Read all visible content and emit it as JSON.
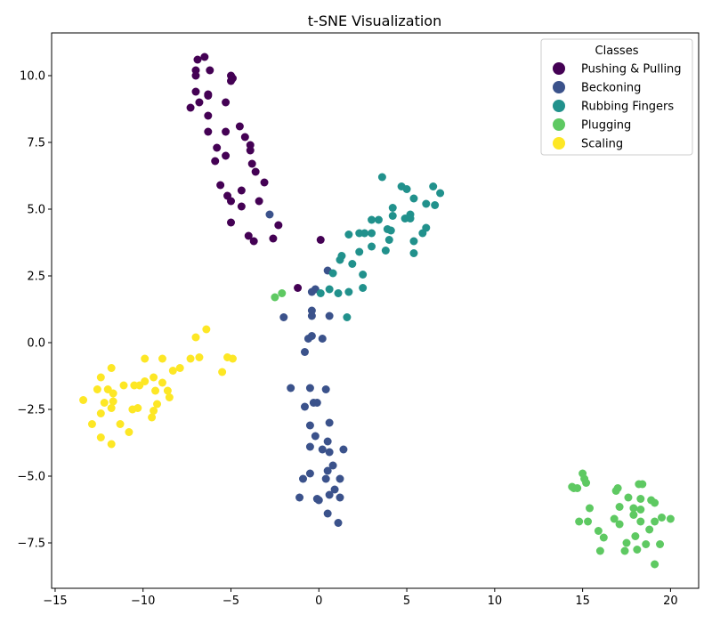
{
  "chart_data": {
    "type": "scatter",
    "title": "t-SNE Visualization",
    "xlabel": "",
    "ylabel": "",
    "xlim": [
      -15.2,
      21.6
    ],
    "ylim": [
      -9.2,
      11.6
    ],
    "xticks": [
      -15,
      -10,
      -5,
      0,
      5,
      10,
      15,
      20
    ],
    "yticks": [
      -7.5,
      -5.0,
      -2.5,
      0.0,
      2.5,
      5.0,
      7.5,
      10.0
    ],
    "grid": false,
    "legend": {
      "title": "Classes",
      "placement": "top-right"
    },
    "series": [
      {
        "name": "Pushing & Pulling",
        "color": "#440154",
        "points": [
          [
            -6.9,
            10.6
          ],
          [
            -6.5,
            10.7
          ],
          [
            -7.0,
            10.2
          ],
          [
            -6.2,
            10.2
          ],
          [
            -7.0,
            10.0
          ],
          [
            -5.0,
            10.0
          ],
          [
            -4.9,
            9.9
          ],
          [
            -5.0,
            9.8
          ],
          [
            -7.0,
            9.4
          ],
          [
            -6.3,
            9.3
          ],
          [
            -6.3,
            9.25
          ],
          [
            -6.8,
            9.0
          ],
          [
            -7.3,
            8.8
          ],
          [
            -5.3,
            9.0
          ],
          [
            -6.3,
            8.5
          ],
          [
            -4.5,
            8.1
          ],
          [
            -6.3,
            7.9
          ],
          [
            -5.3,
            7.9
          ],
          [
            -4.2,
            7.7
          ],
          [
            -3.9,
            7.4
          ],
          [
            -5.8,
            7.3
          ],
          [
            -3.9,
            7.2
          ],
          [
            -5.3,
            7.0
          ],
          [
            -5.9,
            6.8
          ],
          [
            -3.8,
            6.7
          ],
          [
            -3.6,
            6.4
          ],
          [
            -3.1,
            6.0
          ],
          [
            -5.6,
            5.9
          ],
          [
            -4.4,
            5.7
          ],
          [
            -5.2,
            5.5
          ],
          [
            -5.0,
            5.3
          ],
          [
            -3.4,
            5.3
          ],
          [
            -4.4,
            5.1
          ],
          [
            -2.3,
            4.4
          ],
          [
            -5.0,
            4.5
          ],
          [
            -4.0,
            4.0
          ],
          [
            -3.7,
            3.8
          ],
          [
            -2.6,
            3.9
          ],
          [
            0.1,
            3.85
          ],
          [
            -1.2,
            2.05
          ]
        ]
      },
      {
        "name": "Beckoning",
        "color": "#3b528b",
        "points": [
          [
            -2.8,
            4.8
          ],
          [
            0.5,
            2.7
          ],
          [
            -0.2,
            2.0
          ],
          [
            -0.4,
            1.9
          ],
          [
            -0.4,
            1.2
          ],
          [
            0.6,
            1.0
          ],
          [
            -2.0,
            0.95
          ],
          [
            -0.4,
            1.0
          ],
          [
            -0.4,
            0.25
          ],
          [
            -0.6,
            0.15
          ],
          [
            0.2,
            0.15
          ],
          [
            -0.8,
            -0.35
          ],
          [
            -1.6,
            -1.7
          ],
          [
            -0.5,
            -1.7
          ],
          [
            0.4,
            -1.75
          ],
          [
            -0.3,
            -2.25
          ],
          [
            -0.1,
            -2.25
          ],
          [
            -0.8,
            -2.4
          ],
          [
            0.6,
            -3.0
          ],
          [
            -0.5,
            -3.1
          ],
          [
            -0.2,
            -3.5
          ],
          [
            0.5,
            -3.7
          ],
          [
            -0.5,
            -3.9
          ],
          [
            0.2,
            -4.0
          ],
          [
            0.6,
            -4.1
          ],
          [
            1.4,
            -4.0
          ],
          [
            0.8,
            -4.6
          ],
          [
            0.5,
            -4.8
          ],
          [
            -0.5,
            -4.9
          ],
          [
            0.4,
            -5.1
          ],
          [
            1.2,
            -5.1
          ],
          [
            -0.9,
            -5.1
          ],
          [
            0.9,
            -5.5
          ],
          [
            0.6,
            -5.7
          ],
          [
            1.2,
            -5.8
          ],
          [
            -1.1,
            -5.8
          ],
          [
            -0.1,
            -5.85
          ],
          [
            0.0,
            -5.9
          ],
          [
            0.5,
            -6.4
          ],
          [
            1.1,
            -6.75
          ]
        ]
      },
      {
        "name": "Rubbing Fingers",
        "color": "#21918c",
        "points": [
          [
            3.6,
            6.2
          ],
          [
            4.7,
            5.85
          ],
          [
            5.0,
            5.75
          ],
          [
            6.5,
            5.85
          ],
          [
            6.9,
            5.6
          ],
          [
            5.4,
            5.4
          ],
          [
            6.1,
            5.2
          ],
          [
            6.6,
            5.15
          ],
          [
            4.2,
            5.05
          ],
          [
            5.2,
            4.8
          ],
          [
            5.2,
            4.65
          ],
          [
            4.9,
            4.65
          ],
          [
            4.2,
            4.75
          ],
          [
            3.0,
            4.6
          ],
          [
            3.4,
            4.6
          ],
          [
            6.1,
            4.3
          ],
          [
            3.9,
            4.25
          ],
          [
            4.1,
            4.2
          ],
          [
            3.0,
            4.1
          ],
          [
            2.6,
            4.1
          ],
          [
            2.3,
            4.1
          ],
          [
            1.7,
            4.05
          ],
          [
            5.9,
            4.1
          ],
          [
            4.0,
            3.85
          ],
          [
            5.4,
            3.8
          ],
          [
            3.0,
            3.6
          ],
          [
            3.8,
            3.45
          ],
          [
            2.3,
            3.4
          ],
          [
            5.4,
            3.35
          ],
          [
            1.3,
            3.25
          ],
          [
            1.2,
            3.1
          ],
          [
            1.9,
            2.95
          ],
          [
            0.8,
            2.6
          ],
          [
            2.5,
            2.55
          ],
          [
            0.6,
            2.0
          ],
          [
            2.5,
            2.05
          ],
          [
            1.1,
            1.85
          ],
          [
            1.7,
            1.9
          ],
          [
            0.1,
            1.85
          ],
          [
            1.6,
            0.95
          ]
        ]
      },
      {
        "name": "Plugging",
        "color": "#5ec962",
        "points": [
          [
            -2.5,
            1.7
          ],
          [
            -2.1,
            1.85
          ],
          [
            15.0,
            -4.9
          ],
          [
            15.1,
            -5.1
          ],
          [
            15.2,
            -5.25
          ],
          [
            14.4,
            -5.4
          ],
          [
            14.5,
            -5.45
          ],
          [
            14.7,
            -5.45
          ],
          [
            17.0,
            -5.45
          ],
          [
            16.9,
            -5.55
          ],
          [
            18.2,
            -5.3
          ],
          [
            18.4,
            -5.3
          ],
          [
            17.6,
            -5.8
          ],
          [
            18.3,
            -5.85
          ],
          [
            18.9,
            -5.9
          ],
          [
            19.1,
            -6.0
          ],
          [
            15.4,
            -6.2
          ],
          [
            17.1,
            -6.15
          ],
          [
            17.9,
            -6.2
          ],
          [
            18.3,
            -6.25
          ],
          [
            17.9,
            -6.45
          ],
          [
            19.5,
            -6.55
          ],
          [
            20.0,
            -6.6
          ],
          [
            16.8,
            -6.6
          ],
          [
            15.3,
            -6.7
          ],
          [
            14.8,
            -6.7
          ],
          [
            18.3,
            -6.7
          ],
          [
            19.1,
            -6.7
          ],
          [
            17.1,
            -6.8
          ],
          [
            15.9,
            -7.05
          ],
          [
            18.8,
            -7.0
          ],
          [
            16.2,
            -7.3
          ],
          [
            18.0,
            -7.25
          ],
          [
            17.5,
            -7.5
          ],
          [
            18.6,
            -7.55
          ],
          [
            19.4,
            -7.55
          ],
          [
            18.1,
            -7.75
          ],
          [
            17.4,
            -7.8
          ],
          [
            16.0,
            -7.8
          ],
          [
            19.1,
            -8.3
          ]
        ]
      },
      {
        "name": "Scaling",
        "color": "#fde725",
        "points": [
          [
            -6.4,
            0.5
          ],
          [
            -7.0,
            0.2
          ],
          [
            -7.3,
            -0.6
          ],
          [
            -6.8,
            -0.55
          ],
          [
            -5.2,
            -0.55
          ],
          [
            -4.9,
            -0.6
          ],
          [
            -9.9,
            -0.6
          ],
          [
            -8.9,
            -0.6
          ],
          [
            -7.9,
            -0.95
          ],
          [
            -8.3,
            -1.05
          ],
          [
            -5.5,
            -1.1
          ],
          [
            -11.8,
            -0.95
          ],
          [
            -12.4,
            -1.3
          ],
          [
            -9.4,
            -1.3
          ],
          [
            -9.9,
            -1.45
          ],
          [
            -8.9,
            -1.5
          ],
          [
            -11.1,
            -1.6
          ],
          [
            -10.2,
            -1.6
          ],
          [
            -10.5,
            -1.6
          ],
          [
            -12.6,
            -1.75
          ],
          [
            -12.0,
            -1.75
          ],
          [
            -9.3,
            -1.8
          ],
          [
            -8.6,
            -1.8
          ],
          [
            -11.7,
            -1.9
          ],
          [
            -8.5,
            -2.05
          ],
          [
            -13.4,
            -2.15
          ],
          [
            -11.7,
            -2.2
          ],
          [
            -12.2,
            -2.25
          ],
          [
            -9.2,
            -2.3
          ],
          [
            -11.8,
            -2.45
          ],
          [
            -10.3,
            -2.45
          ],
          [
            -10.6,
            -2.5
          ],
          [
            -9.4,
            -2.55
          ],
          [
            -12.4,
            -2.65
          ],
          [
            -9.5,
            -2.8
          ],
          [
            -12.9,
            -3.05
          ],
          [
            -11.3,
            -3.05
          ],
          [
            -10.8,
            -3.35
          ],
          [
            -12.4,
            -3.55
          ],
          [
            -11.8,
            -3.8
          ]
        ]
      }
    ]
  }
}
